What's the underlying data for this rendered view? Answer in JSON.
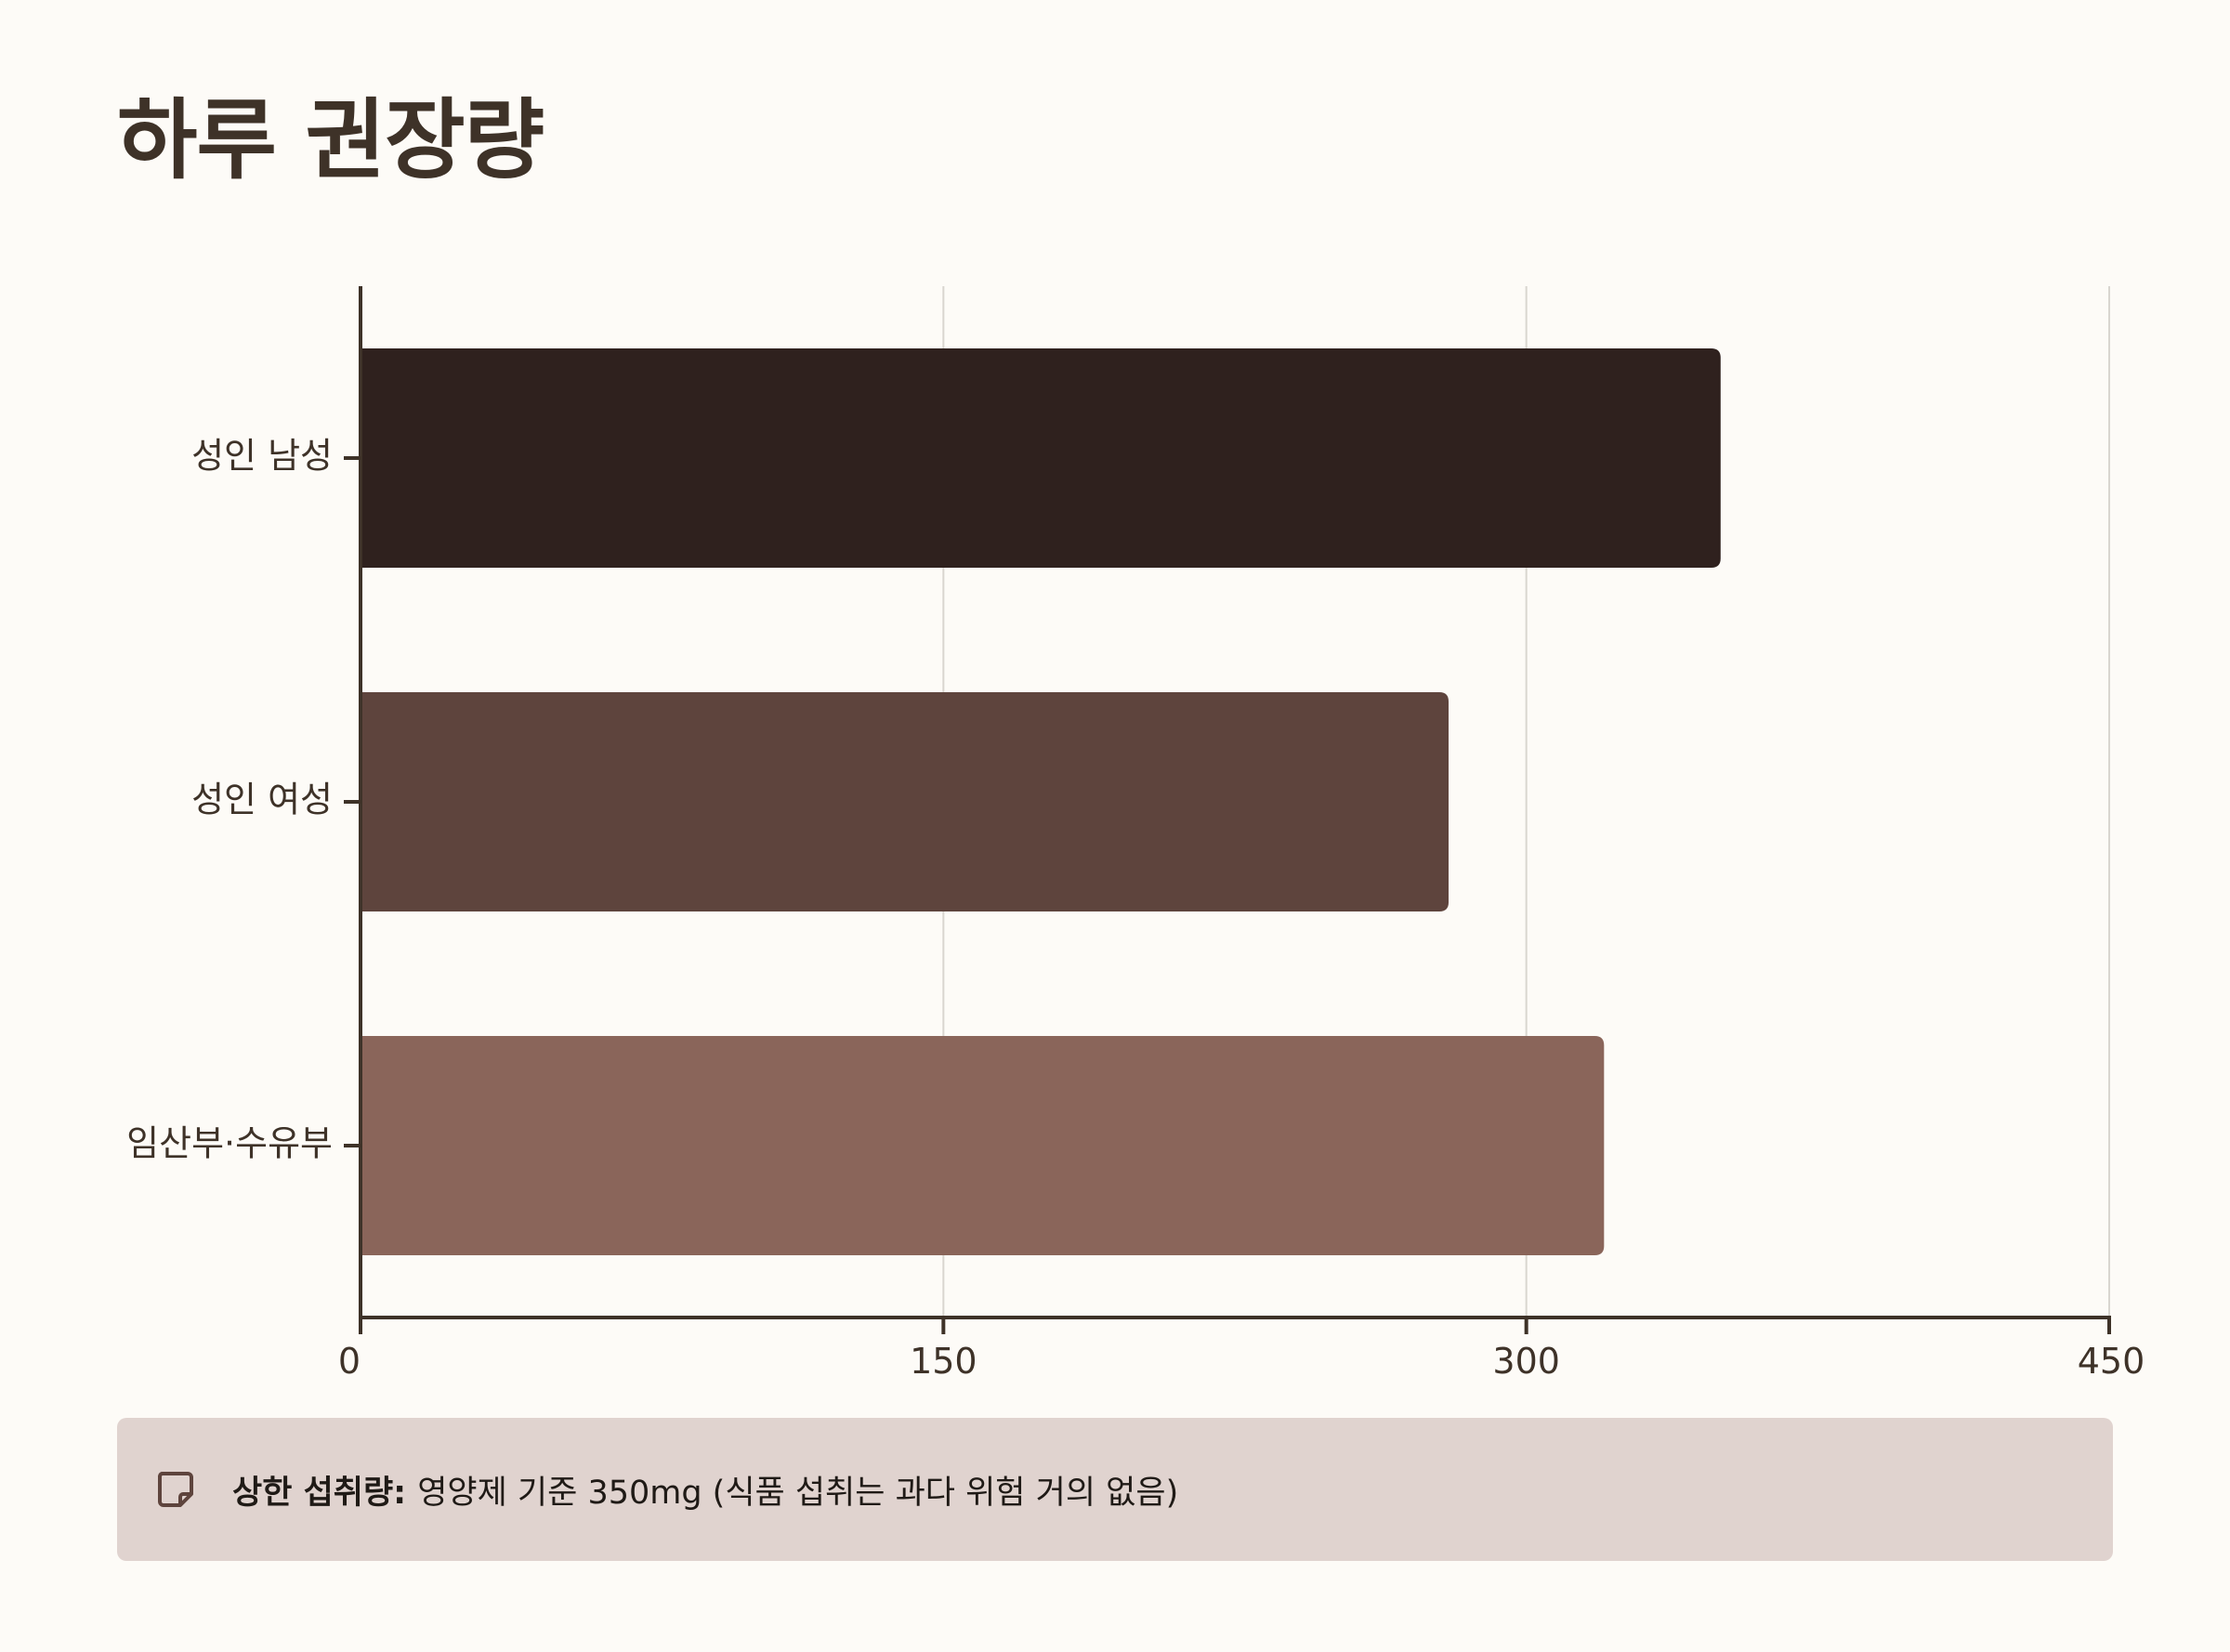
{
  "title": "하루 권장량",
  "note": {
    "icon": "note-icon",
    "label": "상한 섭취량:",
    "text": "영양제 기준 350mg (식품 섭취는 과다 위험 거의 없음)"
  },
  "colors": {
    "background": "#fdfbf7",
    "text": "#3e3228",
    "axis": "#3e3228",
    "grid": "#d9d6d0",
    "note_background": "#e0d3cf"
  },
  "chart_data": {
    "type": "bar",
    "orientation": "horizontal",
    "categories": [
      "성인 남성",
      "성인 여성",
      "임산부·수유부"
    ],
    "values": [
      350,
      280,
      320
    ],
    "colors": [
      "#2f211e",
      "#5e443d",
      "#8a655a"
    ],
    "xlim": [
      0,
      450
    ],
    "xticks": [
      0,
      150,
      300,
      450
    ],
    "grid": true,
    "legend": "none"
  }
}
